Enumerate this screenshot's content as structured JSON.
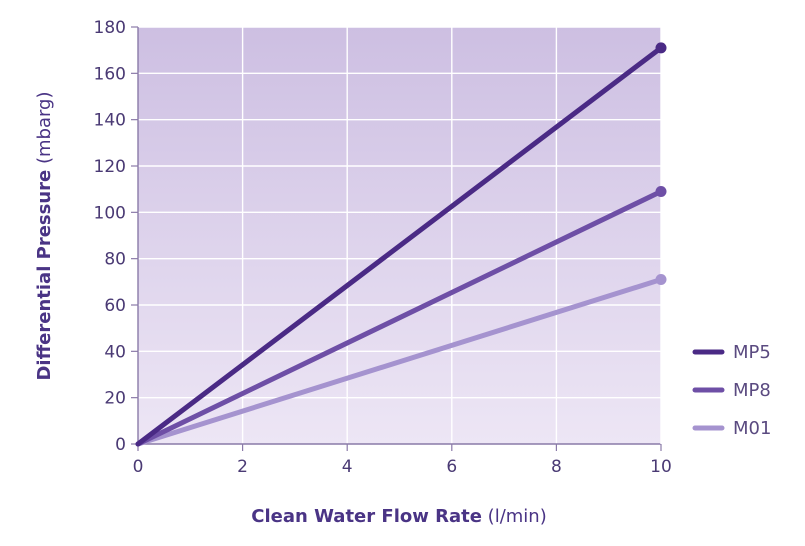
{
  "chart_data": {
    "type": "line",
    "title": "",
    "xlabel": {
      "bold": "Clean Water Flow Rate",
      "unit": " (l/min)"
    },
    "ylabel": {
      "bold": "Differential Pressure",
      "unit": " (mbarg)"
    },
    "xlim": [
      0,
      10
    ],
    "ylim": [
      0,
      180
    ],
    "xticks": [
      "0",
      "2",
      "4",
      "6",
      "8",
      "10"
    ],
    "yticks": [
      "0",
      "20",
      "40",
      "60",
      "80",
      "100",
      "120",
      "140",
      "160",
      "180"
    ],
    "grid": true,
    "legend_position": "right",
    "series": [
      {
        "name": "MP5",
        "color": "#4a2a85",
        "points": [
          [
            0,
            0
          ],
          [
            10,
            171
          ]
        ]
      },
      {
        "name": "MP8",
        "color": "#6e4fa6",
        "points": [
          [
            0,
            0
          ],
          [
            10,
            109
          ]
        ]
      },
      {
        "name": "M01",
        "color": "#a593cf",
        "points": [
          [
            0,
            0
          ],
          [
            10,
            71
          ]
        ]
      }
    ]
  }
}
